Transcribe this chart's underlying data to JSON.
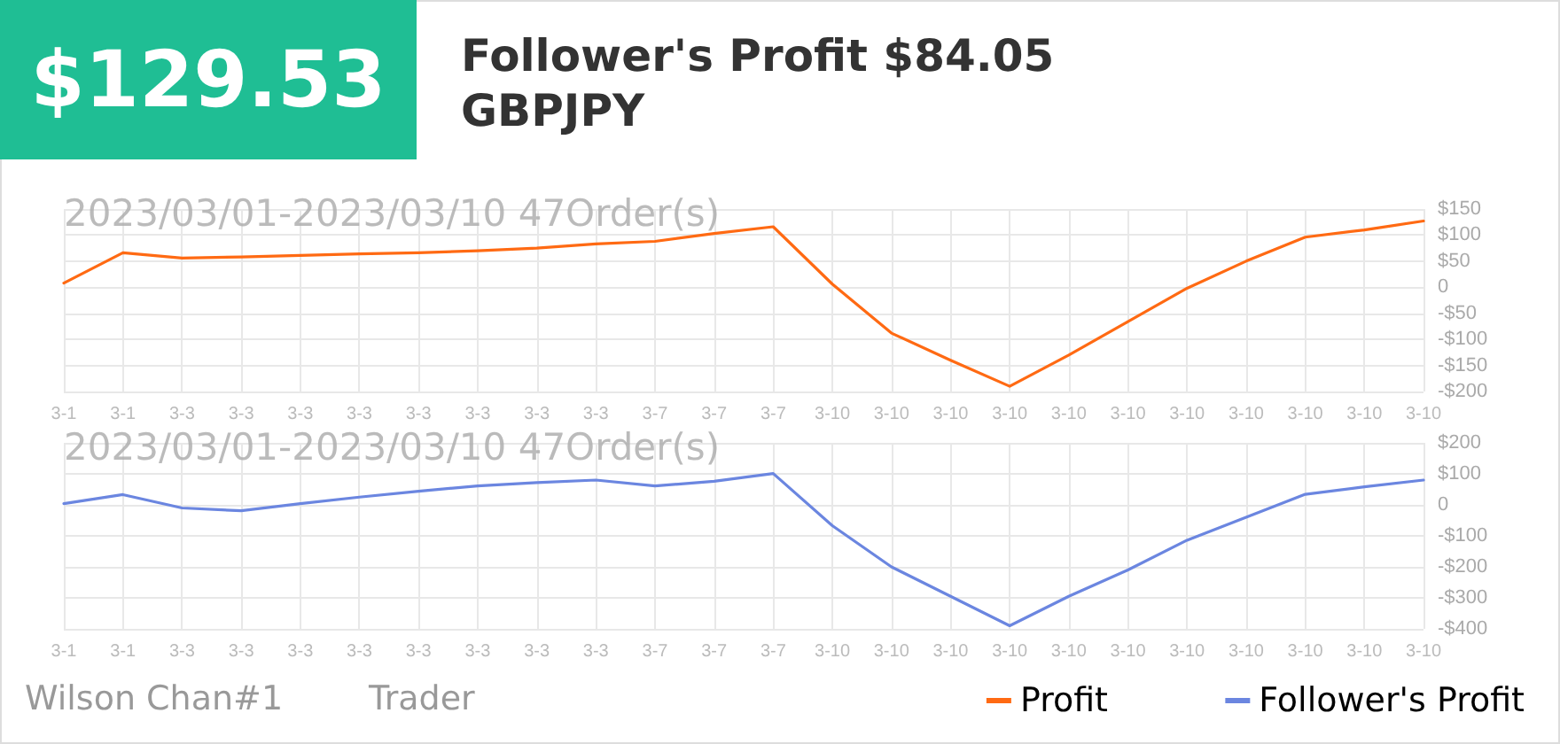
{
  "chart_data": [
    {
      "type": "line",
      "title": "Follower's Profit $84.05",
      "subtitle": "GBPJPY",
      "annotations": [
        "$129.53",
        "2023/03/01-2023/03/10 47Order(s)"
      ],
      "categories": [
        "3-1",
        "3-1",
        "3-3",
        "3-3",
        "3-3",
        "3-3",
        "3-3",
        "3-3",
        "3-3",
        "3-3",
        "3-7",
        "3-7",
        "3-7",
        "3-10",
        "3-10",
        "3-10",
        "3-10",
        "3-10",
        "3-10",
        "3-10",
        "3-10",
        "3-10",
        "3-10",
        "3-10"
      ],
      "series": [
        {
          "name": "Profit",
          "color": "#ff6a13",
          "values": [
            8,
            66,
            56,
            58,
            61,
            64,
            66,
            70,
            75,
            83,
            88,
            103,
            116,
            6,
            -88,
            -140,
            -190,
            -130,
            -66,
            -2,
            50,
            96,
            110,
            127
          ]
        }
      ],
      "ylim": [
        -200,
        150
      ],
      "yticks": [
        {
          "value": -200,
          "label": "-$200"
        },
        {
          "value": -150,
          "label": "-$150"
        },
        {
          "value": -100,
          "label": "-$100"
        },
        {
          "value": -50,
          "label": "-$50"
        },
        0,
        {
          "value": 50,
          "label": "$50"
        },
        {
          "value": 100,
          "label": "$100"
        },
        {
          "value": 150,
          "label": "$150"
        }
      ],
      "grid": true,
      "legend": "bottom right",
      "marker": "none",
      "line_style": "solid"
    },
    {
      "type": "line",
      "annotations": [
        "2023/03/01-2023/03/10 47Order(s)",
        "Wilson Chan#1",
        "Trader"
      ],
      "categories": [
        "3-1",
        "3-1",
        "3-3",
        "3-3",
        "3-3",
        "3-3",
        "3-3",
        "3-3",
        "3-3",
        "3-3",
        "3-7",
        "3-7",
        "3-7",
        "3-10",
        "3-10",
        "3-10",
        "3-10",
        "3-10",
        "3-10",
        "3-10",
        "3-10",
        "3-10",
        "3-10",
        "3-10"
      ],
      "series": [
        {
          "name": "Follower's Profit",
          "color": "#6b86e0",
          "values": [
            4,
            33,
            -10,
            -19,
            4,
            25,
            44,
            61,
            72,
            80,
            61,
            76,
            101,
            -67,
            -200,
            -295,
            -390,
            -295,
            -210,
            -114,
            -40,
            34,
            58,
            80
          ]
        }
      ],
      "ylim": [
        -400,
        200
      ],
      "yticks": [
        {
          "value": -400,
          "label": "-$400"
        },
        {
          "value": -300,
          "label": "-$300"
        },
        {
          "value": -200,
          "label": "-$200"
        },
        {
          "value": -100,
          "label": "-$100"
        },
        0,
        {
          "value": 100,
          "label": "$100"
        },
        {
          "value": 200,
          "label": "$200"
        }
      ],
      "grid": true,
      "legend": "bottom right",
      "marker": "none",
      "line_style": "solid"
    }
  ]
}
